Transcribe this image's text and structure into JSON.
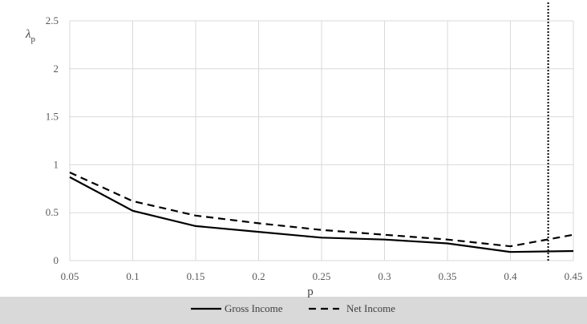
{
  "chart_data": {
    "type": "line",
    "title": "",
    "xlabel": "p",
    "ylabel": "λp",
    "ylabel_main": "λ",
    "ylabel_sub": "p",
    "x": [
      0.05,
      0.1,
      0.15,
      0.2,
      0.25,
      0.3,
      0.35,
      0.4,
      0.45
    ],
    "xlim": [
      0.05,
      0.45
    ],
    "ylim": [
      0,
      2.5
    ],
    "x_ticks": [
      "0.05",
      "0.1",
      "0.15",
      "0.2",
      "0.25",
      "0.3",
      "0.35",
      "0.4",
      "0.45"
    ],
    "y_ticks": [
      "0",
      "0.5",
      "1",
      "1.5",
      "2",
      "2.5"
    ],
    "grid": true,
    "legend_position": "bottom",
    "series": [
      {
        "name": "Gross Income",
        "style": "solid",
        "values": [
          0.87,
          0.52,
          0.36,
          0.3,
          0.24,
          0.22,
          0.18,
          0.09,
          0.1
        ]
      },
      {
        "name": "Net Income",
        "style": "dashed",
        "values": [
          0.92,
          0.62,
          0.47,
          0.39,
          0.32,
          0.27,
          0.22,
          0.15,
          0.27
        ]
      }
    ],
    "reference_line": {
      "x": 0.43,
      "style": "dotted"
    }
  },
  "colors": {
    "background": "#d9d9d9",
    "plot_area": "#ffffff",
    "grid": "#d9d9d9",
    "series": "#000000"
  }
}
